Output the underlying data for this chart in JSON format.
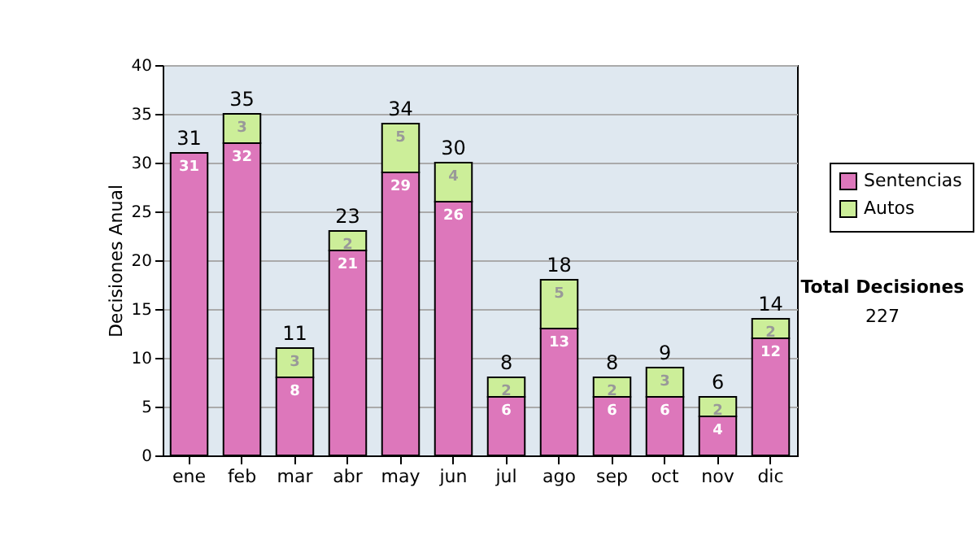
{
  "chart_data": {
    "type": "bar",
    "stacked": true,
    "ylabel": "Decisiones Anual",
    "categories": [
      "ene",
      "feb",
      "mar",
      "abr",
      "may",
      "jun",
      "jul",
      "ago",
      "sep",
      "oct",
      "nov",
      "dic"
    ],
    "series": [
      {
        "name": "Sentencias",
        "color": "#dd77bb",
        "values": [
          31,
          32,
          8,
          21,
          29,
          26,
          6,
          13,
          6,
          6,
          4,
          12
        ],
        "value_labels": [
          "31",
          "32",
          "8",
          "21",
          "29",
          "26",
          "6",
          "13",
          "6",
          "6",
          "4",
          "12"
        ]
      },
      {
        "name": "Autos",
        "color": "#ccee99",
        "values": [
          0,
          3,
          3,
          2,
          5,
          4,
          2,
          5,
          2,
          3,
          2,
          2
        ],
        "value_labels": [
          null,
          "3",
          "3",
          "2",
          "5",
          "4",
          "2",
          "5",
          "2",
          "3",
          "2",
          "2"
        ]
      }
    ],
    "totals": [
      "31",
      "35",
      "11",
      "23",
      "34",
      "30",
      "8",
      "18",
      "8",
      "9",
      "6",
      "14"
    ],
    "ylim": [
      0,
      40
    ],
    "yticks": [
      0,
      5,
      10,
      15,
      20,
      25,
      30,
      35,
      40
    ],
    "grid": "y",
    "legend": "right",
    "annotations": [
      "Total Decisiones",
      "227"
    ]
  }
}
